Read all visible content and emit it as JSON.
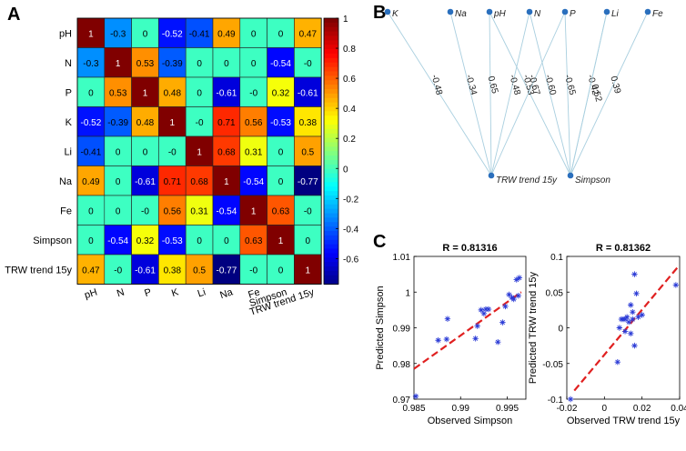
{
  "panels": {
    "a": "A",
    "b": "B",
    "c": "C"
  },
  "chart_data": [
    {
      "type": "heatmap",
      "panel": "A",
      "row_labels": [
        "pH",
        "N",
        "P",
        "K",
        "Li",
        "Na",
        "Fe",
        "Simpson",
        "TRW trend 15y"
      ],
      "col_labels": [
        "pH",
        "N",
        "P",
        "K",
        "Li",
        "Na",
        "Fe",
        "Simpson",
        "TRW trend 15y"
      ],
      "values": [
        [
          1,
          -0.3,
          0,
          -0.52,
          -0.41,
          0.49,
          0,
          0,
          0.47
        ],
        [
          -0.3,
          1,
          0.53,
          -0.39,
          0,
          0,
          0,
          -0.54,
          0
        ],
        [
          0,
          0.53,
          1,
          0.48,
          0,
          -0.61,
          0,
          0.32,
          -0.61
        ],
        [
          -0.52,
          -0.39,
          0.48,
          1,
          0,
          0.71,
          0.56,
          -0.53,
          0.38
        ],
        [
          -0.41,
          0,
          0,
          0,
          1,
          0.68,
          0.31,
          0,
          0.5
        ],
        [
          0.49,
          0,
          -0.61,
          0.71,
          0.68,
          1,
          -0.54,
          0,
          -0.77
        ],
        [
          0,
          0,
          0,
          0.56,
          0.31,
          -0.54,
          1,
          0.63,
          0
        ],
        [
          0,
          -0.54,
          0.32,
          -0.53,
          0,
          0,
          0.63,
          1,
          0
        ],
        [
          0.47,
          0,
          -0.61,
          0.38,
          0.5,
          -0.77,
          0,
          0,
          1
        ]
      ],
      "cell_text": [
        [
          "1",
          "-0.3",
          "0",
          "-0.52",
          "-0.41",
          "0.49",
          "0",
          "0",
          "0.47"
        ],
        [
          "-0.3",
          "1",
          "0.53",
          "-0.39",
          "0",
          "0",
          "0",
          "-0.54",
          "-0"
        ],
        [
          "0",
          "0.53",
          "1",
          "0.48",
          "0",
          "-0.61",
          "-0",
          "0.32",
          "-0.61"
        ],
        [
          "-0.52",
          "-0.39",
          "0.48",
          "1",
          "-0",
          "0.71",
          "0.56",
          "-0.53",
          "0.38"
        ],
        [
          "-0.41",
          "0",
          "0",
          "-0",
          "1",
          "0.68",
          "0.31",
          "0",
          "0.5"
        ],
        [
          "0.49",
          "0",
          "-0.61",
          "0.71",
          "0.68",
          "1",
          "-0.54",
          "0",
          "-0.77"
        ],
        [
          "0",
          "0",
          "-0",
          "0.56",
          "0.31",
          "-0.54",
          "1",
          "0.63",
          "-0"
        ],
        [
          "0",
          "-0.54",
          "0.32",
          "-0.53",
          "0",
          "0",
          "0.63",
          "1",
          "0"
        ],
        [
          "0.47",
          "-0",
          "-0.61",
          "0.38",
          "0.5",
          "-0.77",
          "-0",
          "0",
          "1"
        ]
      ],
      "colorbar": {
        "min": -0.77,
        "max": 1,
        "ticks": [
          -0.6,
          -0.4,
          -0.2,
          0,
          0.2,
          0.4,
          0.6,
          0.8,
          1
        ],
        "tick_labels": [
          "-0.6",
          "-0.4",
          "-0.2",
          "0",
          "0.2",
          "0.4",
          "0.6",
          "0.8",
          "1"
        ]
      }
    },
    {
      "type": "network",
      "panel": "B",
      "top_nodes": [
        "K",
        "Na",
        "pH",
        "N",
        "P",
        "Li",
        "Fe"
      ],
      "bottom_nodes": [
        "TRW trend 15y",
        "Simpson"
      ],
      "edges": [
        {
          "from": "K",
          "to": "TRW trend 15y",
          "label": "-0.48"
        },
        {
          "from": "Na",
          "to": "TRW trend 15y",
          "label": "-0.34"
        },
        {
          "from": "pH",
          "to": "TRW trend 15y",
          "label": "0.65"
        },
        {
          "from": "pH",
          "to": "Simpson",
          "label": "-0.53"
        },
        {
          "from": "N",
          "to": "TRW trend 15y",
          "label": "-0.48"
        },
        {
          "from": "N",
          "to": "Simpson",
          "label": "-0.60"
        },
        {
          "from": "P",
          "to": "TRW trend 15y",
          "label": "-0.67"
        },
        {
          "from": "P",
          "to": "Simpson",
          "label": "-0.65"
        },
        {
          "from": "Li",
          "to": "Simpson",
          "label": "-0.42"
        },
        {
          "from": "Li",
          "to": "Simpson",
          "label": "0.52"
        },
        {
          "from": "Fe",
          "to": "Simpson",
          "label": "0.39"
        }
      ]
    },
    {
      "type": "scatter",
      "panel": "C-left",
      "title": "R = 0.81316",
      "xlabel": "Observed Simpson",
      "ylabel": "Predicted Simpson",
      "xlim": [
        0.985,
        0.997
      ],
      "ylim": [
        0.97,
        1.01
      ],
      "xticks": [
        0.985,
        0.99,
        0.995
      ],
      "xtick_labels": [
        "0.985",
        "0.99",
        "0.995"
      ],
      "yticks": [
        0.97,
        0.98,
        0.99,
        1,
        1.01
      ],
      "ytick_labels": [
        "0.97",
        "0.98",
        "0.99",
        "1",
        "1.01"
      ],
      "points": [
        [
          0.9852,
          0.9708
        ],
        [
          0.9876,
          0.9865
        ],
        [
          0.9885,
          0.9868
        ],
        [
          0.9886,
          0.9925
        ],
        [
          0.9916,
          0.987
        ],
        [
          0.9918,
          0.9905
        ],
        [
          0.9922,
          0.995
        ],
        [
          0.9925,
          0.994
        ],
        [
          0.9927,
          0.9952
        ],
        [
          0.993,
          0.9952
        ],
        [
          0.994,
          0.986
        ],
        [
          0.9945,
          0.9915
        ],
        [
          0.9948,
          0.996
        ],
        [
          0.9952,
          0.9993
        ],
        [
          0.9955,
          0.9985
        ],
        [
          0.9957,
          0.998
        ],
        [
          0.996,
          1.0035
        ],
        [
          0.9963,
          1.004
        ],
        [
          0.9962,
          0.999
        ]
      ],
      "fit_line": [
        [
          0.985,
          0.9785
        ],
        [
          0.9965,
          1.0
        ]
      ]
    },
    {
      "type": "scatter",
      "panel": "C-right",
      "title": "R = 0.81362",
      "xlabel": "Observed TRW trend 15y",
      "ylabel": "Predicted TRW trend 15y",
      "xlim": [
        -0.02,
        0.04
      ],
      "ylim": [
        -0.1,
        0.1
      ],
      "xticks": [
        -0.02,
        0,
        0.02,
        0.04
      ],
      "xtick_labels": [
        "-0.02",
        "0",
        "0.02",
        "0.04"
      ],
      "yticks": [
        -0.1,
        -0.05,
        0,
        0.05,
        0.1
      ],
      "ytick_labels": [
        "-0.1",
        "-0.05",
        "0",
        "0.05",
        "0.1"
      ],
      "points": [
        [
          -0.018,
          -0.1
        ],
        [
          0.007,
          -0.048
        ],
        [
          0.008,
          0.0
        ],
        [
          0.009,
          0.012
        ],
        [
          0.01,
          0.012
        ],
        [
          0.011,
          -0.005
        ],
        [
          0.011,
          0.012
        ],
        [
          0.012,
          0.015
        ],
        [
          0.013,
          0.008
        ],
        [
          0.014,
          -0.008
        ],
        [
          0.014,
          0.032
        ],
        [
          0.015,
          0.012
        ],
        [
          0.015,
          0.022
        ],
        [
          0.016,
          0.075
        ],
        [
          0.016,
          -0.025
        ],
        [
          0.017,
          0.048
        ],
        [
          0.018,
          0.015
        ],
        [
          0.02,
          0.018
        ],
        [
          0.038,
          0.06
        ]
      ],
      "fit_line": [
        [
          -0.016,
          -0.088
        ],
        [
          0.039,
          0.085
        ]
      ]
    }
  ]
}
